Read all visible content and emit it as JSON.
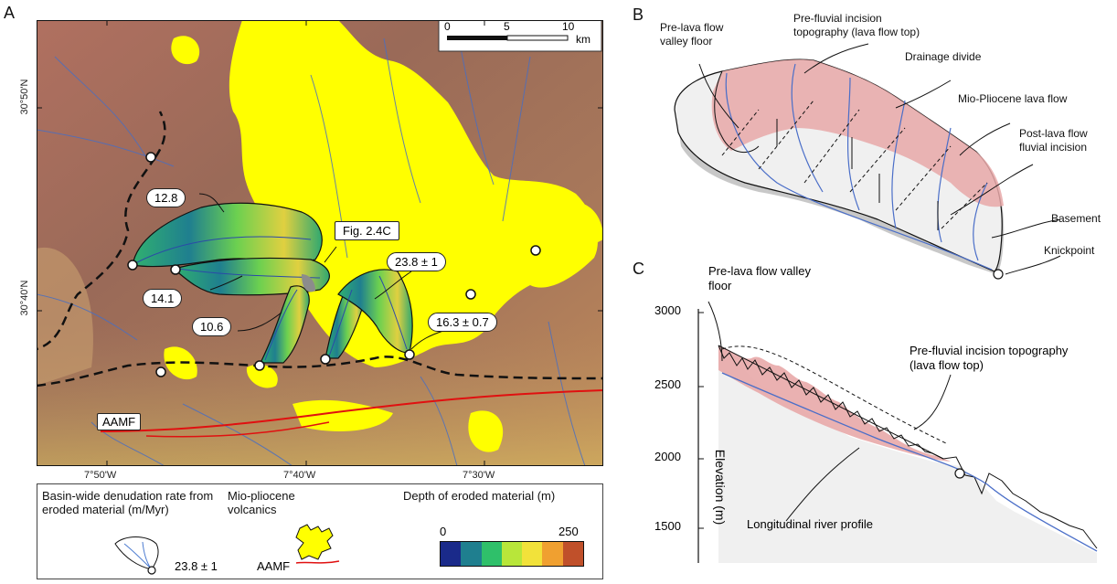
{
  "panels": {
    "a": "A",
    "b": "B",
    "c": "C"
  },
  "map": {
    "scalebar": {
      "ticks": [
        "0",
        "5",
        "10"
      ],
      "unit": "km"
    },
    "lat_labels": [
      "30°50'N",
      "30°40'N"
    ],
    "lon_labels": [
      "7°50'W",
      "7°40'W",
      "7°30'W"
    ],
    "callouts": [
      "12.8",
      "14.1",
      "10.6",
      "23.8 ± 1",
      "16.3 ± 0.7",
      "Fig. 2.4C"
    ],
    "fault_label": "AAMF"
  },
  "legend": {
    "rate_title": "Basin-wide denudation rate from eroded material (m/Myr)",
    "rate_example": "23.8 ± 1",
    "volc_title": "Mio-pliocene volcanics",
    "fault_label": "AAMF",
    "depth_title": "Depth of eroded material (m)",
    "depth_min": "0",
    "depth_max": "250",
    "colors": [
      "#1a2a8a",
      "#1f7f8f",
      "#2fc06a",
      "#b8e63a",
      "#f2e23a",
      "#f0a030",
      "#c0502a"
    ]
  },
  "diagram_b": {
    "labels": {
      "pre_lava": "Pre-lava flow valley floor",
      "pre_fluvial": "Pre-fluvial incision topography (lava flow top)",
      "divide": "Drainage divide",
      "lava": "Mio-Pliocene lava flow",
      "post_lava": "Post-lava flow fluvial incision",
      "basement": "Basement",
      "knickpoint": "Knickpoint"
    }
  },
  "profile_c": {
    "y_ticks": [
      "3000",
      "2500",
      "2000",
      "1500"
    ],
    "y_label": "Elevation (m)",
    "labels": {
      "pre_lava": "Pre-lava flow valley floor",
      "pre_fluvial": "Pre-fluvial incision topography (lava flow top)",
      "river": "Longitudinal river profile"
    }
  }
}
